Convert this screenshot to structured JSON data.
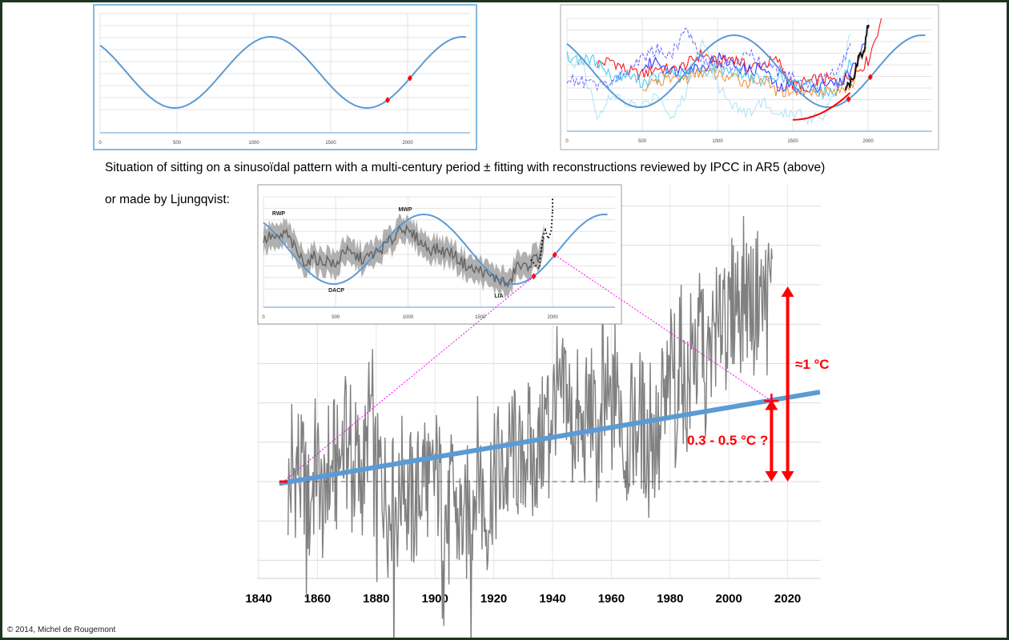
{
  "captions": {
    "line1": "Situation of sitting on a sinusoïdal pattern with a multi-century period ± fitting with reconstructions reviewed by IPCC in AR5 (above)",
    "line2": "or made by Ljungqvist:"
  },
  "credit": "© 2014, Michel de Rougemont",
  "colors": {
    "sine": "#5b9bd5",
    "marker": "#ff0000",
    "series": "#808080",
    "connector": "#ff00ff",
    "annotation": "#ff0000"
  },
  "chart_data": [
    {
      "id": "sine-model",
      "type": "line",
      "title": "",
      "x_ticks": [
        "0",
        "500",
        "1000",
        "1500",
        "2000"
      ],
      "xlim": [
        0,
        2385
      ],
      "sine": {
        "period_years": 1250,
        "peak_year": 1110,
        "amplitude": 1
      },
      "markers_years": [
        1870,
        2015
      ]
    },
    {
      "id": "ipcc-ar5-reconstructions",
      "type": "line",
      "x_ticks": [
        "0",
        "500",
        "1000",
        "1500",
        "2000"
      ],
      "xlim": [
        0,
        2400
      ],
      "x_step": 100,
      "series": [
        {
          "name": "recon-red",
          "color": "#ff0000",
          "start": 200,
          "values": [
            0.2,
            0.3,
            0.0,
            -0.1,
            0.1,
            0.0,
            0.2,
            0.5,
            0.2,
            0.4,
            0.1,
            0.2,
            0.3,
            -0.4,
            -0.3,
            -0.2,
            -0.3,
            -0.1,
            0.3,
            1.6
          ]
        },
        {
          "name": "recon-blue",
          "color": "#1f1fff",
          "start": 500,
          "values": [
            0.1,
            0.3,
            0.0,
            0.1,
            0.1,
            0.4,
            0.2,
            0.0,
            0.1,
            -0.5,
            -0.4,
            -0.6,
            -0.3,
            -0.4,
            0.1,
            0.9
          ]
        },
        {
          "name": "recon-lightblue",
          "color": "#3fc8f0",
          "start": 0,
          "values": [
            0.4,
            0.3,
            0.3,
            -0.2,
            -0.1,
            -0.3,
            -0.2,
            0.0,
            -0.1,
            0.0,
            0.1,
            0.0,
            -0.1,
            -0.3,
            -0.1,
            -0.4,
            -0.3,
            -0.6,
            -0.5,
            0.4
          ]
        },
        {
          "name": "recon-orange",
          "color": "#f08a30",
          "start": 500,
          "values": [
            -0.5,
            -0.3,
            -0.2,
            -0.2,
            0.0,
            -0.1,
            -0.2,
            -0.3,
            -0.2,
            -0.6,
            -0.5,
            -0.6,
            -0.5,
            -0.6,
            -0.3,
            0.9
          ]
        },
        {
          "name": "recon-paleblue",
          "color": "#9fe0f8",
          "start": 0,
          "values": [
            0.3,
            0.2,
            -1.2,
            -0.7,
            -0.9,
            -1.0,
            -0.6,
            -1.3,
            -0.5,
            1.0,
            -0.4,
            -0.9,
            -1.2,
            -0.8,
            -1.3,
            -1.1,
            -1.3,
            -1.2,
            -0.3,
            1.2
          ]
        },
        {
          "name": "recon-dashedblue",
          "color": "#6060ff",
          "start": 0,
          "values": [
            -0.2,
            -0.3,
            -0.4,
            -0.3,
            0.0,
            0.4,
            0.6,
            0.5,
            1.2,
            0.3,
            0.2,
            0.1,
            0.5,
            0.2,
            0.0,
            -0.2,
            -0.4,
            -0.2,
            0.0,
            0.8
          ]
        },
        {
          "name": "instrumental-black",
          "color": "#000000",
          "start": 1850,
          "values": [
            -0.4,
            -0.3,
            0.3,
            0.5,
            1.6
          ],
          "step": 40
        }
      ],
      "fit_curve": {
        "color": "#ff0000",
        "from_year": 1500,
        "to_year": 1880
      },
      "markers_years": [
        1870,
        2015
      ]
    },
    {
      "id": "ljungqvist-inset",
      "type": "line",
      "x_ticks": [
        "0",
        "500",
        "1000",
        "1500",
        "2000"
      ],
      "xlim": [
        0,
        2400
      ],
      "annotations": [
        "RWP",
        "MWP",
        "DACP",
        "LIA"
      ],
      "reconstruction": {
        "start": 0,
        "step": 50,
        "values": [
          0.24,
          0.38,
          0.26,
          0.49,
          0.15,
          -0.22,
          -0.38,
          -0.22,
          -0.38,
          -0.3,
          -0.54,
          0.0,
          -0.15,
          -0.22,
          -0.3,
          -0.15,
          -0.08,
          0.15,
          0.3,
          0.7,
          0.45,
          0.38,
          0.15,
          0.0,
          0.0,
          -0.08,
          -0.08,
          -0.3,
          -0.45,
          -0.6,
          -0.6,
          -0.75,
          -0.83,
          -0.9,
          -1.07,
          -0.45,
          -0.54,
          -0.38,
          -0.22,
          0.3
        ]
      },
      "instrumental": {
        "years": [
          1850,
          1870,
          1890,
          1910,
          1930,
          1950,
          1970,
          1990,
          2000
        ],
        "values": [
          -0.3,
          -0.4,
          -0.5,
          -0.55,
          0.3,
          0.55,
          0.3,
          0.5,
          1.1
        ]
      },
      "markers_years": [
        1870,
        2015
      ]
    },
    {
      "id": "hadcrut-main",
      "type": "line",
      "xlabel": "",
      "ylabel": "",
      "x_ticks": [
        "1840",
        "1860",
        "1880",
        "1900",
        "1920",
        "1940",
        "1960",
        "1980",
        "2000",
        "2020"
      ],
      "xlim": [
        1840,
        2031
      ],
      "ylim": [
        -0.5,
        1.5
      ],
      "y_grid_step": 0.2,
      "series_start_year": 1850,
      "annual_anomaly_C": [
        -0.05,
        0.0,
        0.05,
        0.1,
        0.0,
        0.05,
        -0.1,
        -0.15,
        0.0,
        0.1,
        0.05,
        -0.1,
        -0.2,
        0.1,
        0.0,
        0.1,
        0.05,
        0.1,
        0.15,
        0.2,
        0.15,
        0.0,
        0.05,
        0.1,
        0.0,
        0.05,
        0.1,
        0.3,
        0.35,
        0.05,
        0.0,
        0.05,
        0.0,
        -0.05,
        -0.15,
        -0.1,
        -0.1,
        -0.15,
        0.0,
        0.1,
        -0.1,
        -0.05,
        -0.15,
        -0.1,
        -0.05,
        0.0,
        0.1,
        0.05,
        -0.1,
        0.0,
        0.05,
        0.0,
        -0.1,
        -0.15,
        -0.25,
        -0.1,
        -0.05,
        -0.2,
        -0.2,
        -0.2,
        -0.2,
        -0.15,
        -0.1,
        -0.05,
        0.1,
        0.05,
        -0.1,
        -0.2,
        -0.1,
        0.0,
        0.0,
        0.1,
        0.0,
        0.05,
        0.05,
        0.1,
        0.2,
        0.15,
        0.1,
        0.0,
        0.15,
        0.2,
        0.15,
        0.05,
        0.15,
        0.15,
        0.2,
        0.3,
        0.35,
        0.35,
        0.4,
        0.45,
        0.35,
        0.4,
        0.5,
        0.4,
        0.25,
        0.3,
        0.3,
        0.25,
        0.2,
        0.3,
        0.35,
        0.4,
        0.25,
        0.2,
        0.15,
        0.35,
        0.4,
        0.35,
        0.35,
        0.4,
        0.4,
        0.4,
        0.15,
        0.2,
        0.25,
        0.3,
        0.25,
        0.35,
        0.3,
        0.2,
        0.25,
        0.4,
        0.2,
        0.25,
        0.15,
        0.4,
        0.35,
        0.45,
        0.55,
        0.6,
        0.45,
        0.65,
        0.45,
        0.45,
        0.5,
        0.65,
        0.7,
        0.6,
        0.8,
        0.75,
        0.55,
        0.6,
        0.7,
        0.8,
        0.7,
        0.85,
        1.0,
        0.8,
        0.8,
        0.9,
        0.95,
        0.95,
        0.9,
        1.0,
        0.95,
        0.95,
        0.85,
        0.95,
        1.0,
        0.9,
        0.95,
        0.95,
        1.0
      ],
      "trend_line": {
        "from": [
          1847,
          -0.01
        ],
        "to": [
          2031,
          0.455
        ]
      },
      "baseline_C": 0,
      "annotations": [
        {
          "text": "≈1 °C",
          "from_C": 0,
          "to_C": 1.0,
          "year": 2020
        },
        {
          "text": "0.3 - 0.5 °C ?",
          "from_C": 0,
          "to_C": 0.41,
          "year": 2014
        }
      ]
    }
  ]
}
